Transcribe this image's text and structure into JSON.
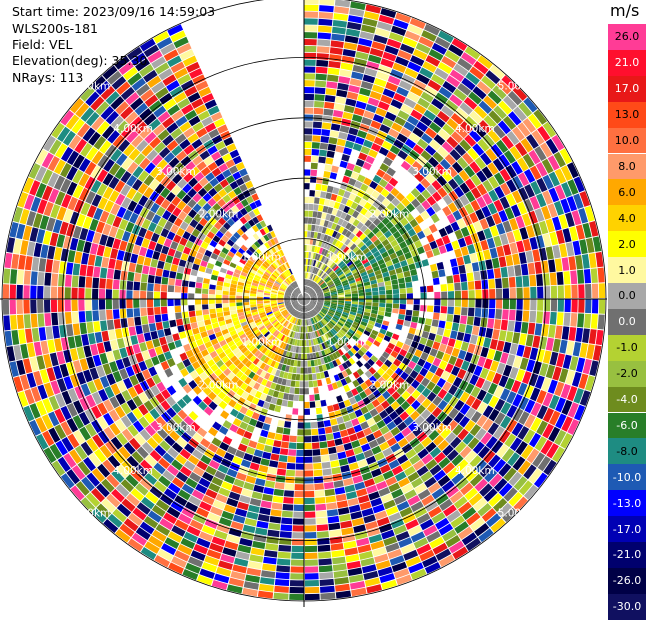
{
  "header": {
    "start_time": "Start time: 2023/09/16 14:59:03",
    "instrument": "WLS200s-181",
    "field": "Field: VEL",
    "elevation": "Elevation(deg): 35.30",
    "nrays": "NRays: 113"
  },
  "colorbar": {
    "unit": "m/s",
    "levels": [
      {
        "label": "26.0",
        "color": "#ff3c96"
      },
      {
        "label": "21.0",
        "color": "#ff0f2e"
      },
      {
        "label": "17.0",
        "color": "#e81818"
      },
      {
        "label": "13.0",
        "color": "#ff4a18"
      },
      {
        "label": "10.0",
        "color": "#ff7040"
      },
      {
        "label": "8.0",
        "color": "#ff9a6a"
      },
      {
        "label": "6.0",
        "color": "#ffa800"
      },
      {
        "label": "4.0",
        "color": "#ffd200"
      },
      {
        "label": "2.0",
        "color": "#ffff00"
      },
      {
        "label": "1.0",
        "color": "#fff9a0"
      },
      {
        "label": "0.0",
        "color": "#a8a8a8"
      },
      {
        "label": "0.0",
        "color": "#707070"
      },
      {
        "label": "-1.0",
        "color": "#b4d232"
      },
      {
        "label": "-2.0",
        "color": "#98c040"
      },
      {
        "label": "-4.0",
        "color": "#6e8c1e"
      },
      {
        "label": "-6.0",
        "color": "#287e28"
      },
      {
        "label": "-8.0",
        "color": "#1e8c82"
      },
      {
        "label": "-10.0",
        "color": "#1e5ab4"
      },
      {
        "label": "-13.0",
        "color": "#0000ff"
      },
      {
        "label": "-17.0",
        "color": "#0000b4"
      },
      {
        "label": "-21.0",
        "color": "#00006e"
      },
      {
        "label": "-26.0",
        "color": "#000046"
      },
      {
        "label": "-30.0",
        "color": "#101060"
      }
    ]
  },
  "chart_data": {
    "type": "heatmap",
    "projection": "polar PPI",
    "rings_km": [
      1,
      2,
      3,
      4,
      5
    ],
    "ring_labels": [
      "1.00km",
      "2.00km",
      "3.00km",
      "4.00km",
      "5.00km"
    ],
    "range_max_km": 5.0,
    "azimuth_gap_deg": [
      335,
      360
    ],
    "near_field_summary": {
      "description": "inner region (<2 km) shows coherent low velocities",
      "west_sector": "positive 2-6 m/s (yellow/orange)",
      "east_sector": "negative -1 to -6 m/s (green)",
      "south_sector": "near 0 to -2 m/s (grey/olive)"
    },
    "far_field_summary": "beyond ~2.5 km noisy random values spanning -30 to 26 m/s"
  }
}
